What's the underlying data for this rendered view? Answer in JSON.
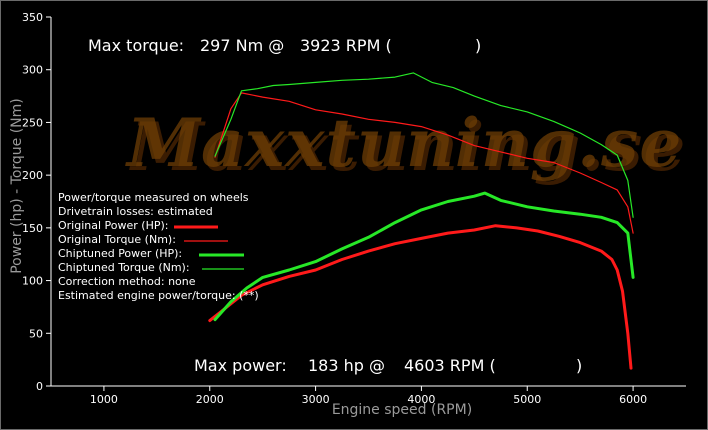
{
  "chart_data": {
    "type": "line",
    "watermark": "Maxxtuning.se",
    "xlabel": "Engine speed (RPM)",
    "ylabel": "Power (hp) - Torque (Nm)",
    "xlim": [
      500,
      6500
    ],
    "ylim": [
      0,
      350
    ],
    "xticks": [
      1000,
      2000,
      3000,
      4000,
      5000,
      6000
    ],
    "yticks": [
      0,
      50,
      100,
      150,
      200,
      250,
      300,
      350
    ],
    "grid": false,
    "max_torque": {
      "prefix": "Max torque:",
      "value": "297 Nm @",
      "rpm": "3923 RPM (",
      "suffix": ")"
    },
    "max_power": {
      "prefix": "Max power:",
      "value": "183 hp @",
      "rpm": "4603 RPM (",
      "suffix": ")"
    },
    "notes": [
      "Power/torque measured on wheels",
      "Drivetrain losses: estimated"
    ],
    "legend_placement": "middle-left",
    "legend_footer": [
      "Correction method: none",
      "Estimated engine power/torque: (**)"
    ],
    "colors": {
      "original": "#ff1a1a",
      "chiptuned": "#27e827"
    },
    "series": [
      {
        "name": "Original Power (HP):",
        "role": "original-power",
        "x": [
          2000,
          2150,
          2300,
          2500,
          2750,
          3000,
          3250,
          3500,
          3750,
          4000,
          4250,
          4500,
          4700,
          4900,
          5100,
          5300,
          5500,
          5700,
          5800,
          5850,
          5900,
          5950,
          5980
        ],
        "y": [
          62,
          74,
          86,
          96,
          104,
          110,
          120,
          128,
          135,
          140,
          145,
          148,
          152,
          150,
          147,
          142,
          136,
          128,
          120,
          110,
          90,
          50,
          17
        ]
      },
      {
        "name": "Original Torque (Nm):",
        "role": "original-torque",
        "x": [
          2050,
          2200,
          2300,
          2500,
          2750,
          3000,
          3250,
          3500,
          3750,
          4000,
          4250,
          4500,
          4750,
          5000,
          5250,
          5500,
          5700,
          5850,
          5950,
          6000
        ],
        "y": [
          217,
          263,
          278,
          274,
          270,
          262,
          258,
          253,
          250,
          246,
          238,
          228,
          222,
          216,
          212,
          202,
          193,
          186,
          170,
          145
        ]
      },
      {
        "name": "Chiptuned Power (HP):",
        "role": "chiptuned-power",
        "x": [
          2050,
          2200,
          2350,
          2500,
          2750,
          3000,
          3250,
          3500,
          3750,
          4000,
          4250,
          4500,
          4600,
          4750,
          5000,
          5250,
          5500,
          5700,
          5850,
          5950,
          6000
        ],
        "y": [
          63,
          80,
          93,
          103,
          110,
          118,
          130,
          141,
          155,
          167,
          175,
          180,
          183,
          176,
          170,
          166,
          163,
          160,
          155,
          145,
          103
        ]
      },
      {
        "name": "Chiptuned Torque (Nm):",
        "role": "chiptuned-torque",
        "x": [
          2050,
          2200,
          2300,
          2450,
          2600,
          2750,
          3000,
          3250,
          3500,
          3750,
          3923,
          4100,
          4300,
          4500,
          4750,
          5000,
          5250,
          5500,
          5700,
          5850,
          5950,
          6000
        ],
        "y": [
          218,
          253,
          280,
          282,
          285,
          286,
          288,
          290,
          291,
          293,
          297,
          288,
          283,
          275,
          266,
          260,
          251,
          240,
          229,
          219,
          195,
          160
        ]
      }
    ]
  }
}
